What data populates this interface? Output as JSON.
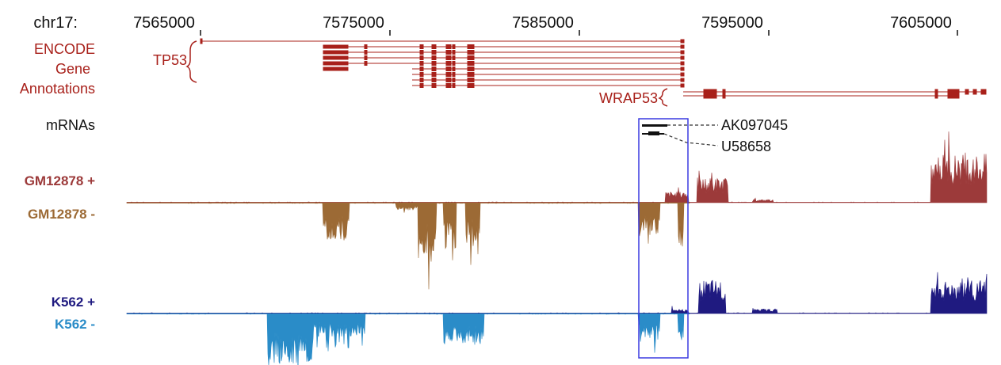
{
  "ruler": {
    "chrom_label": "chr17:",
    "tick_labels": [
      "7565000",
      "7575000",
      "7585000",
      "7595000",
      "7605000"
    ]
  },
  "tracks": {
    "encode": {
      "label_lines": [
        "ENCODE",
        "Gene",
        "Annotations"
      ],
      "color": "#a8201a",
      "tp53_label": "TP53",
      "wrap53_label": "WRAP53"
    },
    "mrnas": {
      "label": "mRNAs",
      "color": "#111111",
      "items": [
        "AK097045",
        "U58658"
      ]
    },
    "gm12878_plus": {
      "label": "GM12878 +",
      "color": "#9c3a3a"
    },
    "gm12878_minus": {
      "label": "GM12878 -",
      "color": "#9c6a35"
    },
    "k562_plus": {
      "label": "K562 +",
      "color": "#1f1a80"
    },
    "k562_minus": {
      "label": "K562 -",
      "color": "#2a8cc8"
    }
  },
  "highlight": {
    "color": "#3a3ae0"
  }
}
